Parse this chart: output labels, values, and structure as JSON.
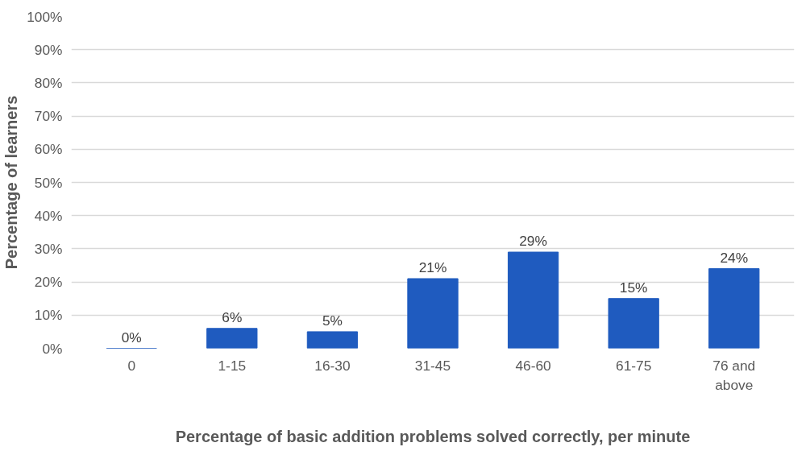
{
  "chart_data": {
    "type": "bar",
    "xlabel": "Percentage of basic addition problems solved correctly, per minute",
    "ylabel": "Percentage of learners",
    "categories": [
      "0",
      "1-15",
      "16-30",
      "31-45",
      "46-60",
      "61-75",
      "76 and above"
    ],
    "values": [
      0,
      6,
      5,
      21,
      29,
      15,
      24
    ],
    "color": "#1f5bbf",
    "value_labels": [
      "0%",
      "6%",
      "5%",
      "21%",
      "29%",
      "15%",
      "24%"
    ],
    "ylim": [
      0,
      100
    ],
    "yticks": [
      {
        "value": 0,
        "label": "0%"
      },
      {
        "value": 10,
        "label": "10%"
      },
      {
        "value": 20,
        "label": "20%"
      },
      {
        "value": 30,
        "label": "30%"
      },
      {
        "value": 40,
        "label": "40%"
      },
      {
        "value": 50,
        "label": "50%"
      },
      {
        "value": 60,
        "label": "60%"
      },
      {
        "value": 70,
        "label": "70%"
      },
      {
        "value": 80,
        "label": "80%"
      },
      {
        "value": 90,
        "label": "90%"
      },
      {
        "value": 100,
        "label": "100%"
      }
    ],
    "grid": "y"
  }
}
